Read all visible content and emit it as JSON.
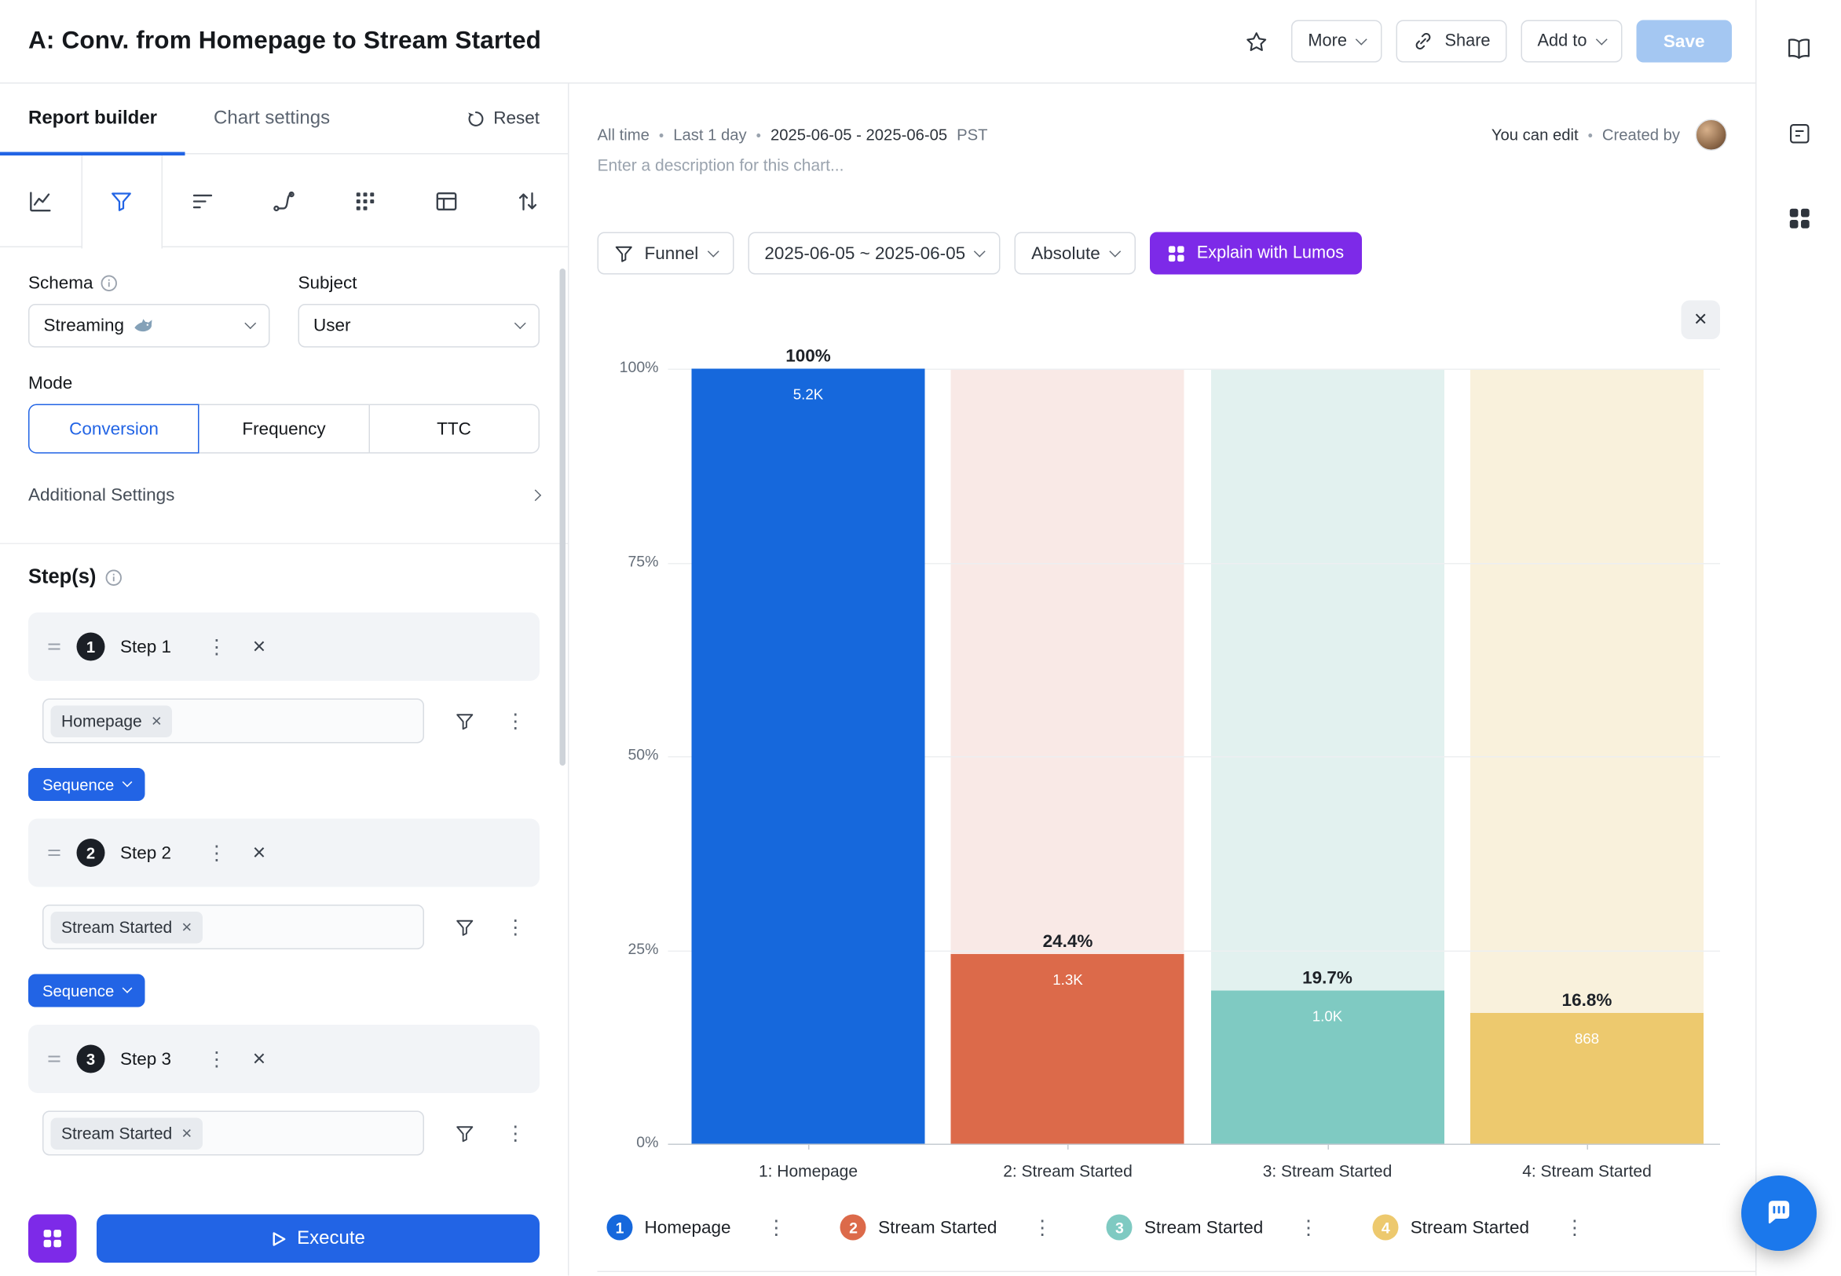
{
  "header": {
    "title": "A: Conv. from Homepage to Stream Started",
    "more": "More",
    "share": "Share",
    "add_to": "Add to",
    "save": "Save"
  },
  "builder": {
    "tab_report": "Report builder",
    "tab_chart": "Chart settings",
    "reset": "Reset",
    "schema_label": "Schema",
    "schema_value": "Streaming",
    "schema_icon": "shark-icon",
    "subject_label": "Subject",
    "subject_value": "User",
    "mode_label": "Mode",
    "modes": [
      "Conversion",
      "Frequency",
      "TTC"
    ],
    "mode_selected": "Conversion",
    "additional_settings": "Additional Settings",
    "steps_heading": "Step(s)",
    "sequence": "Sequence",
    "steps": [
      {
        "num": "1",
        "label": "Step 1",
        "event": "Homepage"
      },
      {
        "num": "2",
        "label": "Step 2",
        "event": "Stream Started"
      },
      {
        "num": "3",
        "label": "Step 3",
        "event": "Stream Started"
      }
    ],
    "execute": "Execute"
  },
  "main": {
    "bullet": "•",
    "filters": [
      "All time",
      "Last 1 day"
    ],
    "date_range_display": "2025-06-05 - 2025-06-05",
    "timezone": "PST",
    "permission": "You can edit",
    "created_by": "Created by",
    "description_placeholder": "Enter a description for this chart...",
    "controls": {
      "chart_type": "Funnel",
      "date_range": "2025-06-05 ~ 2025-06-05",
      "value_mode": "Absolute",
      "lumos": "Explain with Lumos"
    }
  },
  "chart_data": {
    "type": "bar",
    "title": "",
    "categories": [
      "1: Homepage",
      "2: Stream Started",
      "3: Stream Started",
      "4: Stream Started"
    ],
    "series": [
      {
        "name": "Conversion",
        "values_pct": [
          100,
          24.4,
          19.7,
          16.8
        ],
        "counts": [
          "5.2K",
          "1.3K",
          "1.0K",
          "868"
        ]
      }
    ],
    "pct_labels": [
      "100%",
      "24.4%",
      "19.7%",
      "16.8%"
    ],
    "y_ticks": [
      "100%",
      "75%",
      "50%",
      "25%",
      "0%"
    ],
    "ylim": [
      0,
      100
    ],
    "grid": true,
    "legend_position": "bottom",
    "bar_colors": [
      "#1668dc",
      "#dc6a4a",
      "#7fcac2",
      "#edc96e"
    ],
    "bar_bg_colors": [
      "transparent",
      "#f9e9e6",
      "#e2f1ef",
      "#f9f1dc"
    ],
    "legend": [
      {
        "num": "1",
        "label": "Homepage",
        "color": "#1668dc"
      },
      {
        "num": "2",
        "label": "Stream Started",
        "color": "#dc6a4a"
      },
      {
        "num": "3",
        "label": "Stream Started",
        "color": "#7fcac2"
      },
      {
        "num": "4",
        "label": "Stream Started",
        "color": "#edc96e"
      }
    ]
  },
  "colors": {
    "accent_blue": "#2264e5",
    "accent_purple": "#7d2ae8",
    "save_disabled": "#a4c7f2",
    "chat_fab": "#1b78ec"
  }
}
